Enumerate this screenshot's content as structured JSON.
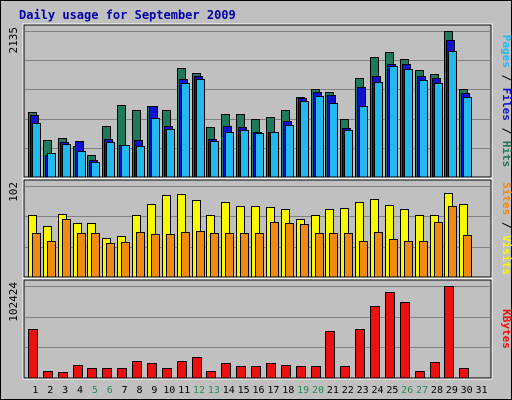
{
  "chart_data": {
    "type": "bar",
    "title": "Daily usage for September 2009",
    "days": [
      "1",
      "2",
      "3",
      "4",
      "5",
      "6",
      "7",
      "8",
      "9",
      "10",
      "11",
      "12",
      "13",
      "14",
      "15",
      "16",
      "17",
      "18",
      "19",
      "20",
      "21",
      "22",
      "23",
      "24",
      "25",
      "26",
      "27",
      "28",
      "29",
      "30",
      "31"
    ],
    "weekend_days": [
      5,
      6,
      12,
      13,
      19,
      20,
      26,
      27
    ],
    "colors": {
      "hits": "#1f7a5c",
      "files": "#1010d0",
      "pages": "#22b8f0",
      "visits": "#f8f800",
      "sites": "#f08a10",
      "kbytes": "#ee1010",
      "weekend": "#2a8a55",
      "weekday": "#000000",
      "title": "#0000aa"
    },
    "panels": [
      {
        "name": "hits_files_pages",
        "ymax_label": "2135",
        "ymax": 2135,
        "legend": [
          "Pages",
          "Files",
          "Hits"
        ],
        "series": [
          {
            "name": "Hits",
            "values": [
              955,
              535,
              575,
              455,
              325,
              740,
              1060,
              985,
              1040,
              975,
              1590,
              1525,
              725,
              920,
              925,
              855,
              875,
              975,
              1175,
              1285,
              1250,
              850,
              1455,
              1755,
              1835,
              1720,
              1560,
              1505,
              2135,
              1290,
              0
            ]
          },
          {
            "name": "Files",
            "values": [
              905,
              320,
              505,
              520,
              245,
              550,
              465,
              545,
              1045,
              740,
              1430,
              1475,
              560,
              740,
              730,
              665,
              660,
              820,
              1160,
              1240,
              1200,
              720,
              1320,
              1470,
              1650,
              1650,
              1470,
              1450,
              2000,
              1230,
              0
            ]
          },
          {
            "name": "Pages",
            "values": [
              790,
              345,
              485,
              385,
              215,
              510,
              470,
              455,
              865,
              705,
              1375,
              1440,
              525,
              660,
              685,
              640,
              660,
              765,
              1115,
              1180,
              1075,
              680,
              1040,
              1390,
              1630,
              1580,
              1415,
              1375,
              1840,
              1175,
              0
            ]
          }
        ]
      },
      {
        "name": "visits_sites",
        "ymax_label": "102",
        "ymax": 102,
        "legend": [
          "Sites",
          "Visits"
        ],
        "series": [
          {
            "name": "Visits",
            "values": [
              70,
              57,
              71,
              60,
              61,
              44,
              46,
              69,
              82,
              92,
              93,
              86,
              69,
              84,
              80,
              80,
              79,
              76,
              65,
              70,
              76,
              77,
              84,
              87,
              81,
              76,
              69,
              69,
              94,
              82,
              0
            ]
          },
          {
            "name": "Sites",
            "values": [
              49,
              40,
              65,
              49,
              49,
              38,
              39,
              50,
              48,
              48,
              50,
              51,
              49,
              49,
              49,
              49,
              62,
              61,
              59,
              49,
              49,
              49,
              40,
              50,
              43,
              40,
              40,
              62,
              80,
              47,
              0
            ]
          }
        ]
      },
      {
        "name": "kbytes",
        "ymax_label": "102424",
        "ymax": 102424,
        "legend": [
          "KBytes"
        ],
        "series": [
          {
            "name": "KBytes",
            "values": [
              55000,
              8000,
              7000,
              14000,
              11000,
              11000,
              11000,
              19000,
              17000,
              11000,
              19000,
              23000,
              8000,
              17000,
              13000,
              13000,
              17000,
              14000,
              13000,
              13000,
              52000,
              13000,
              55000,
              80000,
              96000,
              85000,
              8000,
              18000,
              102424,
              11000,
              0
            ]
          }
        ]
      }
    ]
  }
}
